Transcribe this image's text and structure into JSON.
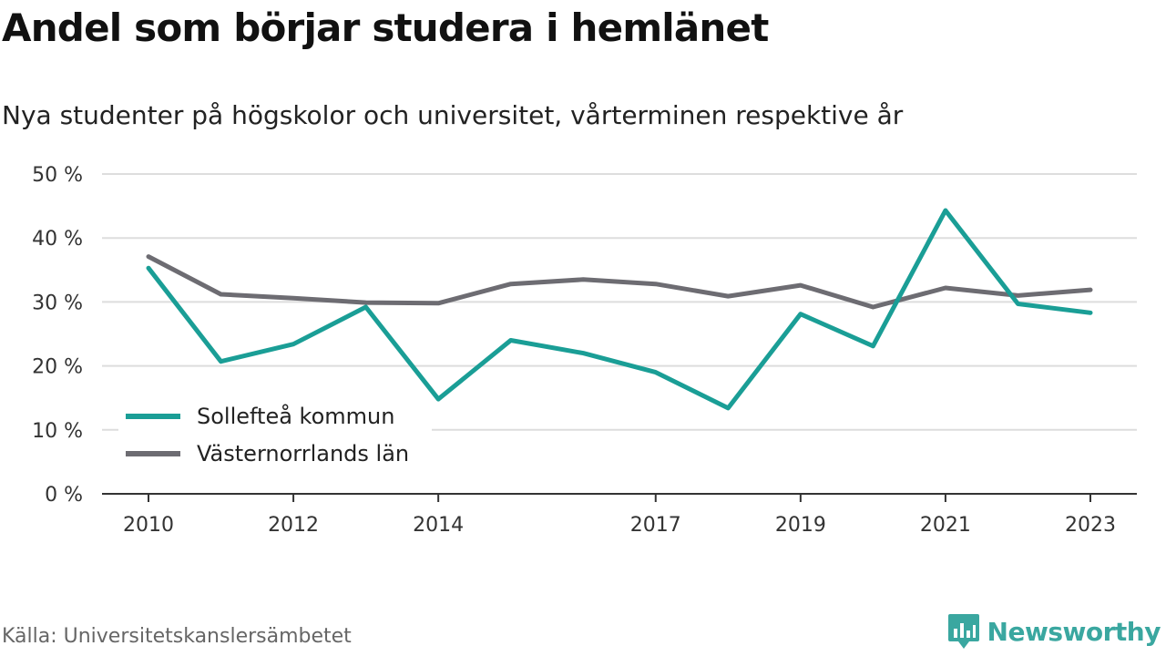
{
  "title": "Andel som börjar studera i hemlänet",
  "subtitle": "Nya studenter på högskolor och universitet, vårterminen respektive år",
  "source": "Källa: Universitetskanslersämbetet",
  "brand": "Newsworthy",
  "colors": {
    "series_1": "#1a9e96",
    "series_2": "#6d6c72",
    "grid": "#dddddd",
    "axis": "#333333",
    "brand": "#3aa7a0"
  },
  "chart_data": {
    "type": "line",
    "x": [
      2010,
      2011,
      2012,
      2013,
      2014,
      2015,
      2016,
      2017,
      2018,
      2019,
      2020,
      2021,
      2022,
      2023
    ],
    "x_tick_labels": [
      "2010",
      "2012",
      "2014",
      "2017",
      "2019",
      "2021",
      "2023"
    ],
    "y_ticks": [
      0,
      10,
      20,
      30,
      40,
      50
    ],
    "y_tick_labels": [
      "0 %",
      "10 %",
      "20 %",
      "30 %",
      "40 %",
      "50 %"
    ],
    "ylim": [
      0,
      50
    ],
    "grid": true,
    "legend_position": "bottom-left",
    "series": [
      {
        "name": "Sollefteå kommun",
        "values": [
          35.3,
          20.7,
          23.4,
          29.2,
          14.8,
          24.0,
          22.0,
          19.0,
          13.4,
          28.1,
          23.1,
          44.3,
          29.7,
          28.3
        ]
      },
      {
        "name": "Västernorrlands län",
        "values": [
          37.1,
          31.2,
          30.6,
          29.9,
          29.8,
          32.8,
          33.5,
          32.8,
          30.9,
          32.6,
          29.2,
          32.2,
          31.0,
          31.9
        ]
      }
    ]
  }
}
